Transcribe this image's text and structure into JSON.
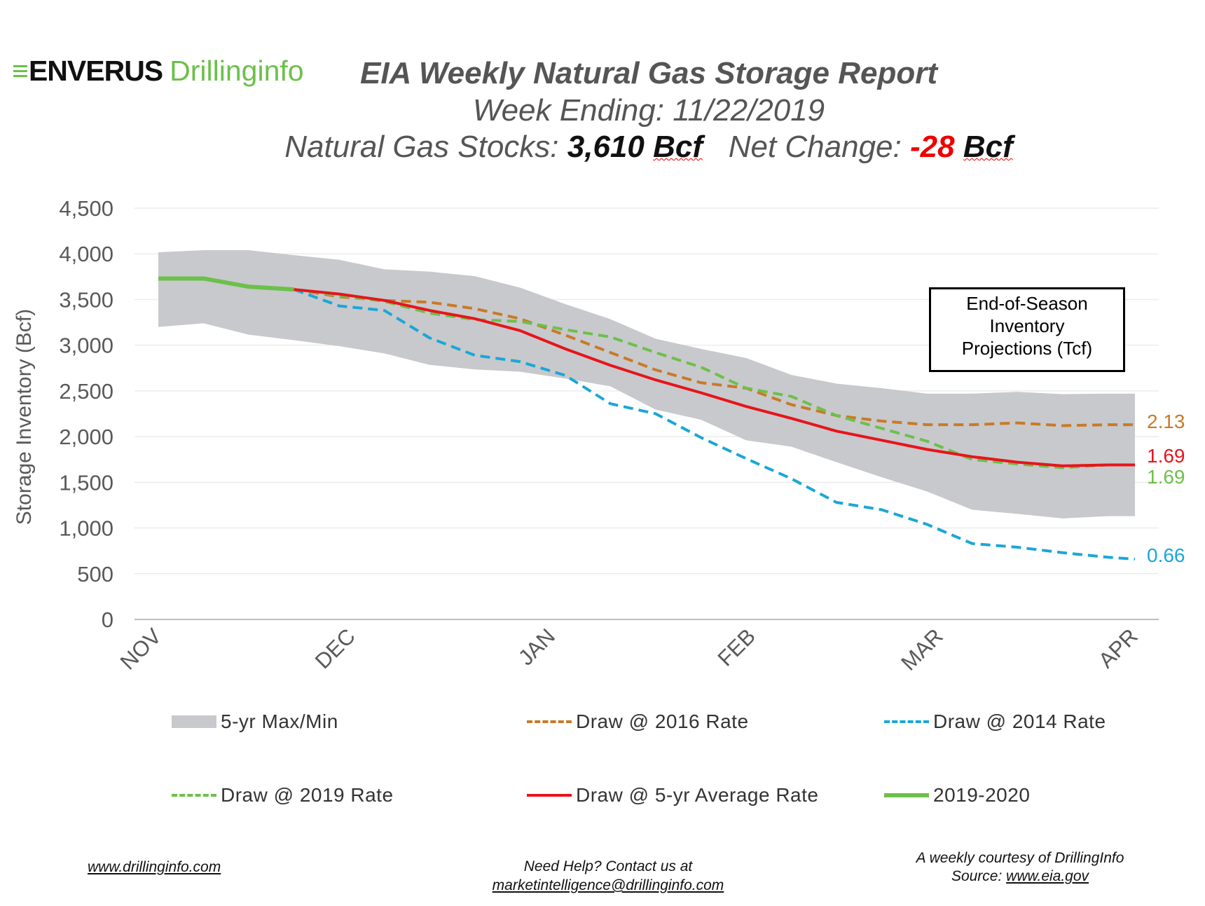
{
  "logo": {
    "mark": "≡",
    "brand": "ENVERUS",
    "sub": "Drillinginfo"
  },
  "header": {
    "title": "EIA Weekly Natural Gas Storage Report",
    "week_label": "Week Ending: 11/22/2019",
    "stocks_label": "Natural Gas Stocks:",
    "stocks_value": "3,610",
    "stocks_unit": "Bcf",
    "change_label": "Net Change:",
    "change_value": "-28",
    "change_unit": "Bcf"
  },
  "projection_box": {
    "line1": "End-of-Season",
    "line2": "Inventory",
    "line3": "Projections (Tcf)"
  },
  "footer": {
    "site": "www.drillinginfo.com",
    "help": "Need Help? Contact us at",
    "email": "marketintelligence@drillinginfo.com",
    "courtesy": "A weekly courtesy of DrillingInfo",
    "source_label": "Source:",
    "source_link": "www.eia.gov"
  },
  "chart_data": {
    "type": "line",
    "title": "EIA Weekly Natural Gas Storage Report",
    "xlabel": "",
    "ylabel": "Storage Inventory (Bcf)",
    "x_unit": "weeks since Nov 1",
    "xlim": [
      0,
      21.6
    ],
    "ylim": [
      0,
      4500
    ],
    "yticks": [
      0,
      500,
      1000,
      1500,
      2000,
      2500,
      3000,
      3500,
      4000,
      4500
    ],
    "ytick_labels": [
      "0",
      "500",
      "1,000",
      "1,500",
      "2,000",
      "2,500",
      "3,000",
      "3,500",
      "4,000",
      "4,500"
    ],
    "xticks": [
      {
        "label": "NOV",
        "week": 0
      },
      {
        "label": "DEC",
        "week": 4.29
      },
      {
        "label": "JAN",
        "week": 8.71
      },
      {
        "label": "FEB",
        "week": 13.14
      },
      {
        "label": "MAR",
        "week": 17.29
      },
      {
        "label": "APR",
        "week": 21.6
      }
    ],
    "grid": true,
    "band": {
      "name": "5-yr Max/Min",
      "color": "#c8c9cc",
      "x": [
        0,
        1,
        2,
        3,
        4,
        5,
        6,
        7,
        8,
        9,
        10,
        11,
        12,
        13,
        14,
        15,
        16,
        17,
        18,
        19,
        20,
        21,
        21.6
      ],
      "max": [
        4017,
        4040,
        4040,
        3985,
        3935,
        3830,
        3805,
        3755,
        3630,
        3450,
        3285,
        3070,
        2960,
        2860,
        2675,
        2580,
        2530,
        2470,
        2470,
        2490,
        2465,
        2470,
        2470
      ],
      "min": [
        3200,
        3240,
        3115,
        3055,
        2990,
        2910,
        2785,
        2735,
        2710,
        2635,
        2550,
        2295,
        2185,
        1960,
        1890,
        1720,
        1555,
        1400,
        1200,
        1155,
        1105,
        1130,
        1130
      ]
    },
    "series": [
      {
        "name": "Draw @ 2016 Rate",
        "color": "#c97a27",
        "dash": true,
        "x": [
          3,
          4,
          5,
          6,
          7,
          8,
          9,
          10,
          11,
          12,
          13,
          14,
          15,
          16,
          17,
          18,
          19,
          20,
          21,
          21.6
        ],
        "values": [
          3610,
          3530,
          3490,
          3470,
          3400,
          3290,
          3110,
          2920,
          2730,
          2590,
          2530,
          2350,
          2230,
          2170,
          2130,
          2130,
          2150,
          2120,
          2130,
          2130
        ],
        "end_label": "2.13"
      },
      {
        "name": "Draw @ 2014 Rate",
        "color": "#1aa7d8",
        "dash": true,
        "x": [
          3,
          4,
          5,
          6,
          7,
          8,
          9,
          10,
          11,
          12,
          13,
          14,
          15,
          16,
          17,
          18,
          19,
          20,
          21,
          21.6
        ],
        "values": [
          3610,
          3430,
          3380,
          3080,
          2890,
          2820,
          2670,
          2360,
          2250,
          1990,
          1760,
          1540,
          1280,
          1200,
          1040,
          830,
          790,
          730,
          680,
          660
        ],
        "end_label": "0.66"
      },
      {
        "name": "Draw @ 2019 Rate",
        "color": "#6cc04a",
        "dash": true,
        "x": [
          3,
          4,
          5,
          6,
          7,
          8,
          9,
          10,
          11,
          12,
          13,
          14,
          15,
          16,
          17,
          18,
          19,
          20,
          21,
          21.6
        ],
        "values": [
          3610,
          3540,
          3480,
          3350,
          3280,
          3260,
          3170,
          3090,
          2920,
          2760,
          2530,
          2440,
          2230,
          2090,
          1950,
          1750,
          1700,
          1660,
          1690,
          1690
        ],
        "end_label": "1.69"
      },
      {
        "name": "Draw @ 5-yr Average Rate",
        "color": "#e8141b",
        "dash": false,
        "x": [
          3,
          4,
          5,
          6,
          7,
          8,
          9,
          10,
          11,
          12,
          13,
          14,
          15,
          16,
          17,
          18,
          19,
          20,
          21,
          21.6
        ],
        "values": [
          3610,
          3560,
          3490,
          3380,
          3290,
          3160,
          2960,
          2780,
          2620,
          2480,
          2330,
          2200,
          2060,
          1960,
          1860,
          1780,
          1720,
          1680,
          1690,
          1690
        ],
        "end_label": "1.69"
      },
      {
        "name": "2019-2020",
        "color": "#6cc04a",
        "dash": false,
        "thick": true,
        "x": [
          0,
          1,
          2,
          3
        ],
        "values": [
          3730,
          3730,
          3640,
          3610
        ]
      }
    ],
    "legend_placement": "bottom"
  }
}
